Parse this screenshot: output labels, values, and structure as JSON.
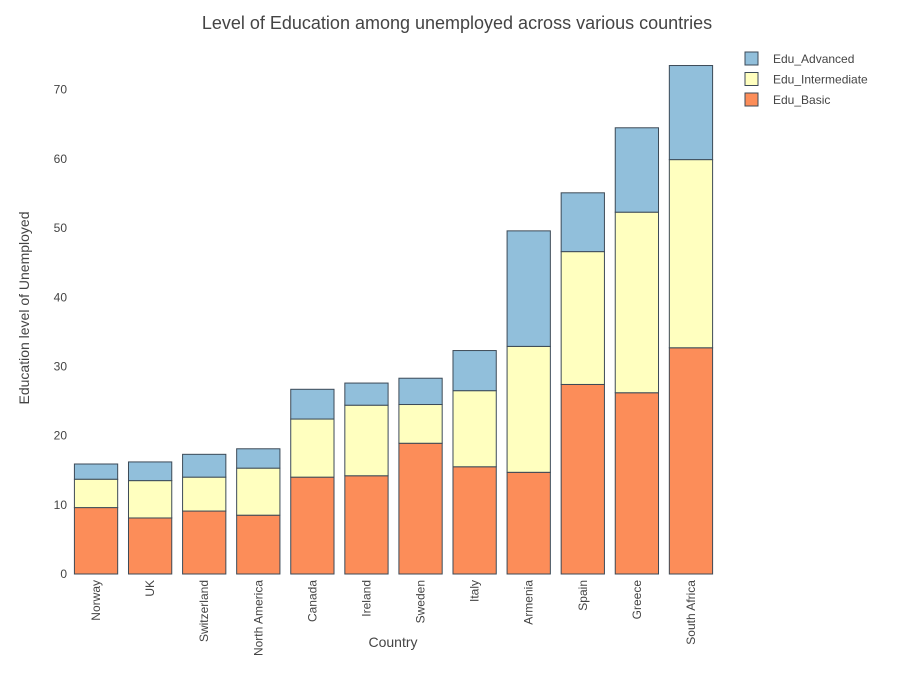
{
  "chart_data": {
    "type": "bar",
    "stacked": true,
    "title": "Level of Education among unemployed across various countries",
    "xlabel": "Country",
    "ylabel": "Education level of Unemployed",
    "categories": [
      "Norway",
      "UK",
      "Switzerland",
      "North America",
      "Canada",
      "Ireland",
      "Sweden",
      "Italy",
      "Armenia",
      "Spain",
      "Greece",
      "South Africa"
    ],
    "series": [
      {
        "name": "Edu_Basic",
        "color": "#fc8d59",
        "values": [
          9.6,
          8.1,
          9.1,
          8.5,
          14.0,
          14.2,
          18.9,
          15.5,
          14.7,
          27.4,
          26.2,
          32.7
        ]
      },
      {
        "name": "Edu_Intermediate",
        "color": "#ffffbf",
        "values": [
          4.1,
          5.4,
          4.9,
          6.8,
          8.4,
          10.2,
          5.6,
          11.0,
          18.2,
          19.2,
          26.1,
          27.2
        ]
      },
      {
        "name": "Edu_Advanced",
        "color": "#91bfdb",
        "values": [
          2.2,
          2.7,
          3.3,
          2.8,
          4.3,
          3.2,
          3.8,
          5.8,
          16.7,
          8.5,
          12.2,
          13.6
        ]
      }
    ],
    "ylim": [
      0,
      76.9
    ],
    "yticks": [
      0,
      10,
      20,
      30,
      40,
      50,
      60,
      70
    ],
    "grid": false,
    "legend": {
      "placement": "top-right",
      "order": [
        "Edu_Advanced",
        "Edu_Intermediate",
        "Edu_Basic"
      ]
    }
  }
}
